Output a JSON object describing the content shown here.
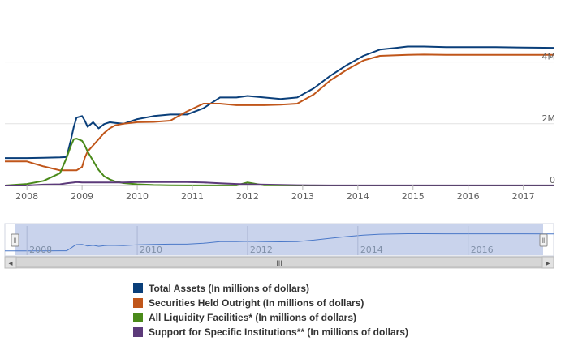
{
  "chart_data": {
    "type": "line",
    "title": "",
    "xlabel": "",
    "ylabel": "",
    "x_ticks": [
      "2008",
      "2009",
      "2010",
      "2011",
      "2012",
      "2013",
      "2014",
      "2015",
      "2016",
      "2017"
    ],
    "y_ticks": [
      {
        "value": 0,
        "label": "0"
      },
      {
        "value": 2000000,
        "label": "2M"
      },
      {
        "value": 4000000,
        "label": "4M"
      }
    ],
    "xlim": [
      2007.6,
      2017.55
    ],
    "ylim": [
      0,
      5800000
    ],
    "grid": true,
    "legend_position": "bottom",
    "x": [
      2007.6,
      2008.0,
      2008.3,
      2008.6,
      2008.72,
      2008.8,
      2008.85,
      2008.9,
      2009.0,
      2009.05,
      2009.1,
      2009.2,
      2009.3,
      2009.4,
      2009.5,
      2009.6,
      2009.75,
      2010.0,
      2010.3,
      2010.6,
      2010.9,
      2011.2,
      2011.5,
      2011.8,
      2012.0,
      2012.3,
      2012.6,
      2012.9,
      2013.2,
      2013.5,
      2013.8,
      2014.1,
      2014.4,
      2014.7,
      2014.9,
      2015.2,
      2015.6,
      2016.0,
      2016.5,
      2017.0,
      2017.55
    ],
    "series": [
      {
        "name": "Total Assets (In millions of dollars)",
        "color": "#0a3f7a",
        "values": [
          890000,
          890000,
          900000,
          910000,
          920000,
          1500000,
          1900000,
          2200000,
          2250000,
          2100000,
          1900000,
          2050000,
          1850000,
          1990000,
          2050000,
          2030000,
          2000000,
          2150000,
          2250000,
          2300000,
          2300000,
          2500000,
          2850000,
          2850000,
          2900000,
          2850000,
          2800000,
          2850000,
          3150000,
          3550000,
          3900000,
          4200000,
          4400000,
          4460000,
          4500000,
          4500000,
          4480000,
          4480000,
          4480000,
          4470000,
          4460000
        ]
      },
      {
        "name": "Securities Held Outright (In millions of dollars)",
        "color": "#c0561a",
        "values": [
          780000,
          780000,
          620000,
          490000,
          490000,
          490000,
          490000,
          490000,
          600000,
          900000,
          1100000,
          1300000,
          1500000,
          1700000,
          1850000,
          1950000,
          2000000,
          2050000,
          2060000,
          2100000,
          2400000,
          2650000,
          2650000,
          2600000,
          2600000,
          2600000,
          2620000,
          2650000,
          2950000,
          3400000,
          3750000,
          4050000,
          4200000,
          4220000,
          4230000,
          4240000,
          4230000,
          4230000,
          4230000,
          4230000,
          4230000
        ]
      },
      {
        "name": "All Liquidity Facilities* (In millions of dollars)",
        "color": "#4a8a1a",
        "values": [
          0,
          50000,
          150000,
          400000,
          900000,
          1300000,
          1500000,
          1520000,
          1450000,
          1300000,
          1100000,
          800000,
          500000,
          300000,
          200000,
          130000,
          80000,
          40000,
          15000,
          5000,
          3000,
          2000,
          1500,
          3000,
          100000,
          5000,
          2000,
          1000,
          1000,
          1000,
          1000,
          1000,
          1000,
          1000,
          1000,
          1000,
          1000,
          1000,
          1000,
          1000,
          1000
        ]
      },
      {
        "name": "Support for Specific Institutions** (In millions of dollars)",
        "color": "#5c3a7a",
        "values": [
          0,
          0,
          30000,
          40000,
          70000,
          90000,
          100000,
          110000,
          100000,
          100000,
          100000,
          100000,
          100000,
          100000,
          100000,
          100000,
          100000,
          110000,
          110000,
          110000,
          110000,
          100000,
          70000,
          50000,
          40000,
          30000,
          20000,
          10000,
          5000,
          3000,
          3000,
          3000,
          3000,
          3000,
          3000,
          3000,
          3000,
          3000,
          3000,
          3000,
          3000
        ]
      }
    ]
  },
  "navigator": {
    "x_ticks": [
      "2008",
      "2010",
      "2012",
      "2014",
      "2016"
    ],
    "left_handle_icon": "drag-handle-icon",
    "right_handle_icon": "drag-handle-icon",
    "scroll_left_icon": "triangle-left-icon",
    "scroll_right_icon": "triangle-right-icon",
    "scroll_grip_icon": "grip-icon",
    "scroll_grip_text": "III",
    "left_arrow_text": "◂",
    "right_arrow_text": "▸",
    "handle_text": "‖",
    "fill_color": "#c9d3ec",
    "line_color": "#4a78c8"
  }
}
